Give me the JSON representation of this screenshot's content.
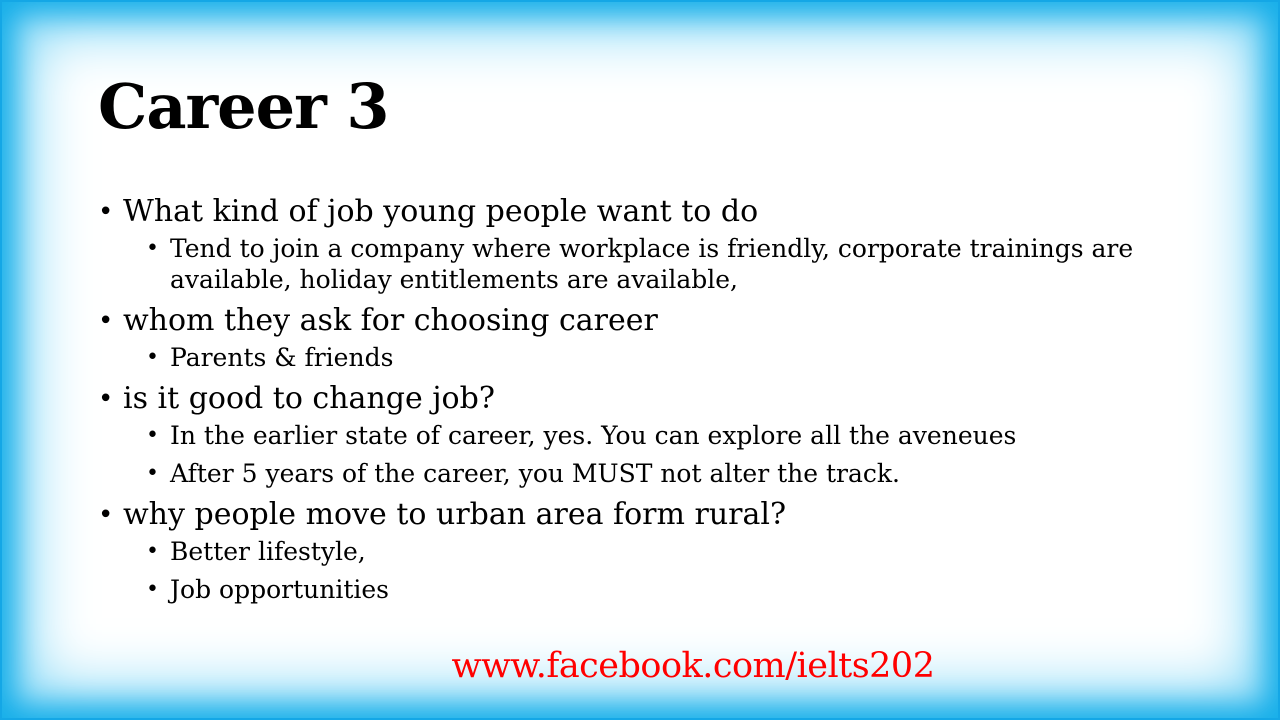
{
  "slide": {
    "title": "Career 3",
    "bullet_symbol": "•",
    "bullets": [
      {
        "text": "What kind of job young people want to do",
        "sub": [
          "Tend to join a company where workplace is friendly, corporate trainings are available, holiday entitlements are available,"
        ]
      },
      {
        "text": "whom they ask for choosing career",
        "sub": [
          "Parents & friends"
        ]
      },
      {
        "text": "is it good to change job?",
        "sub": [
          "In the earlier state of career, yes. You can explore all the aveneues",
          "After 5 years of the career, you MUST not alter the track."
        ]
      },
      {
        "text": "why people move to urban area form rural?",
        "sub": [
          "Better lifestyle,",
          "Job opportunities"
        ]
      }
    ],
    "footer_link": "www.facebook.com/ielts202"
  },
  "colors": {
    "frame": "#15aee9",
    "footer_link": "#ff0000",
    "text": "#000000"
  }
}
